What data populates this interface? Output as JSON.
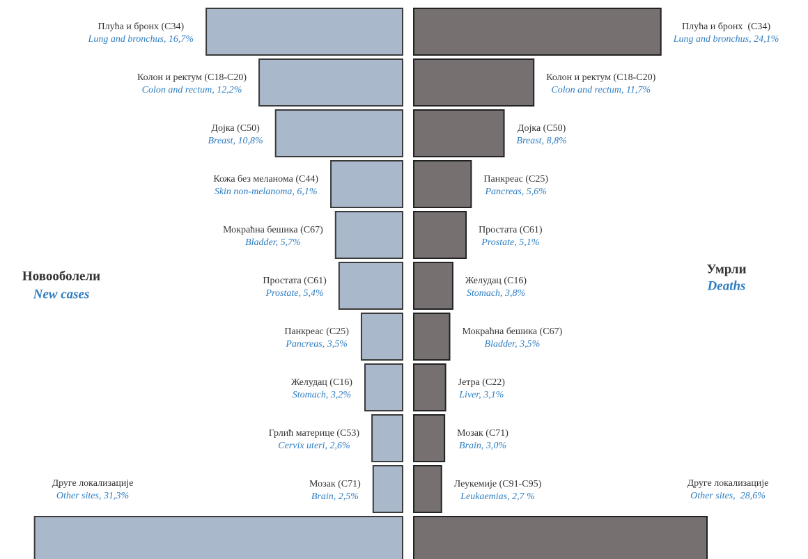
{
  "chart_data": [
    {
      "type": "bar",
      "title": "Новооболели",
      "subtitle": "New cases",
      "color": "#aab8cc",
      "categories": [
        "Плућа и бронх (C34)",
        "Колон и ректум (C18-C20)",
        "Дојка (C50)",
        "Кожа без меланома (C44)",
        "Мокраћна бешика (C67)",
        "Простата (C61)",
        "Панкреас (C25)",
        "Желудац (C16)",
        "Грлић материце (C53)",
        "Мозак (C71)",
        "Друге локализације"
      ],
      "values": [
        16.7,
        12.2,
        10.8,
        6.1,
        5.7,
        5.4,
        3.5,
        3.2,
        2.6,
        2.5,
        31.3
      ],
      "value_labels": [
        "Lung and bronchus, 16,7%",
        "Colon and rectum, 12,2%",
        "Breast, 10,8%",
        "Skin non-melanoma, 6,1%",
        "Bladder, 5,7%",
        "Prostate, 5,4%",
        "Pancreas, 3,5%",
        "Stomach, 3,2%",
        "Cervix uteri, 2,6%",
        "Brain, 2,5%",
        "Other sites, 31,3%"
      ]
    },
    {
      "type": "bar",
      "title": "Умрли",
      "subtitle": "Deaths",
      "color": "#767170",
      "categories": [
        "Плућа и бронх  (C34)",
        "Колон и ректум (C18-C20)",
        "Дојка (C50)",
        "Панкреас (C25)",
        "Простата (C61)",
        "Желудац (C16)",
        "Мокраћна бешика (C67)",
        "Јетра (C22)",
        "Мозак (C71)",
        "Леукемије (C91-C95)",
        "Друге локализације"
      ],
      "values": [
        24.1,
        11.7,
        8.8,
        5.6,
        5.1,
        3.8,
        3.5,
        3.1,
        3.0,
        2.7,
        28.6
      ],
      "value_labels": [
        "Lung and bronchus, 24,1%",
        "Colon and rectum, 11,7%",
        "Breast, 8,8%",
        "Pancreas, 5,6%",
        "Prostate, 5,1%",
        "Stomach, 3,8%",
        "Bladder, 3,5%",
        "Liver, 3,1%",
        "Brain, 3,0%",
        "Leukaemias, 2,7 %",
        "Other sites,  28,6%"
      ]
    }
  ]
}
